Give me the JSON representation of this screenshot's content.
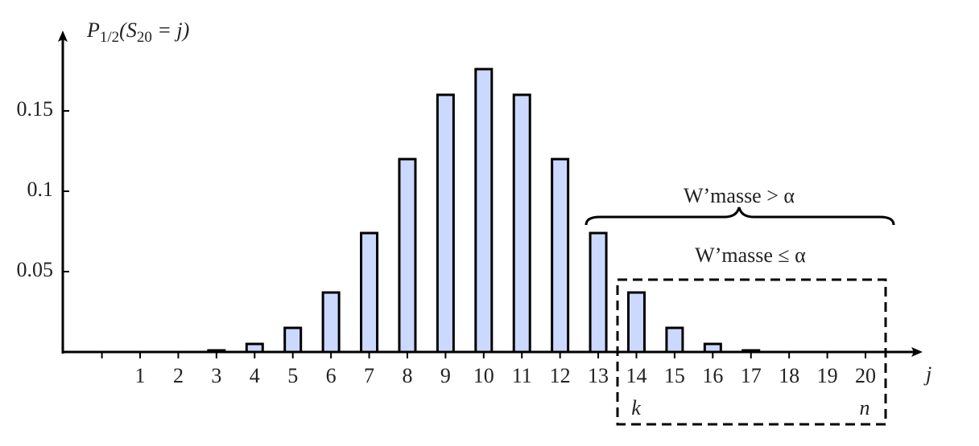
{
  "chart_data": {
    "type": "bar",
    "ylabel": [
      "P",
      "1/2",
      "(S",
      "20",
      " = j)"
    ],
    "xlabel": "j",
    "categories": [
      null,
      "1",
      "2",
      "3",
      "4",
      "5",
      "6",
      "7",
      "8",
      "9",
      "10",
      "11",
      "12",
      "13",
      "14",
      "15",
      "16",
      "17",
      "18",
      "19",
      "20"
    ],
    "values": [
      0,
      0,
      0,
      0.001,
      0.005,
      0.015,
      0.037,
      0.074,
      0.12,
      0.16,
      0.176,
      0.16,
      0.12,
      0.074,
      0.037,
      0.015,
      0.005,
      0.001,
      0,
      0,
      0
    ],
    "color": "#ccd9ff",
    "ylim": [
      0,
      0.2
    ],
    "yticks": [
      0.05,
      0.1,
      0.15
    ],
    "annotations": {
      "upper": "W’masse > α",
      "lower": "W’masse ≤ α",
      "k": "k",
      "n": "n"
    }
  }
}
